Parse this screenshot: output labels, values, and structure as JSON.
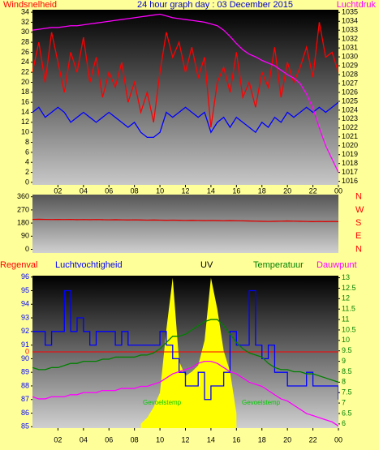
{
  "chart_data": [
    {
      "type": "line",
      "title": "24 hour graph day : 03 December 2015",
      "x": [
        0,
        0.5,
        1,
        1.5,
        2,
        2.5,
        3,
        3.5,
        4,
        4.5,
        5,
        5.5,
        6,
        6.5,
        7,
        7.5,
        8,
        8.5,
        9,
        9.5,
        10,
        10.5,
        11,
        11.5,
        12,
        12.5,
        13,
        13.5,
        14,
        14.5,
        15,
        15.5,
        16,
        16.5,
        17,
        17.5,
        18,
        18.5,
        19,
        19.5,
        20,
        20.5,
        21,
        21.5,
        22,
        22.5,
        23,
        23.5,
        24
      ],
      "xlim": [
        0,
        24
      ],
      "xticks": [
        {
          "value": 2,
          "label": "02"
        },
        {
          "value": 4,
          "label": "04"
        },
        {
          "value": 6,
          "label": "06"
        },
        {
          "value": 8,
          "label": "08"
        },
        10,
        12,
        14,
        16,
        18,
        20,
        22,
        {
          "value": 24,
          "label": "00"
        }
      ],
      "ylim": [
        -0.5,
        34.5
      ],
      "yticks": [
        0,
        2,
        4,
        6,
        8,
        10,
        12,
        14,
        16,
        18,
        20,
        22,
        24,
        26,
        28,
        30,
        32,
        34
      ],
      "y2lim": [
        1015.6,
        1035.3
      ],
      "y2ticks": [
        1016,
        1017,
        1018,
        1019,
        1020,
        1021,
        1022,
        1023,
        1024,
        1025,
        1026,
        1027,
        1028,
        1029,
        1030,
        1031,
        1032,
        1033,
        1034,
        1035
      ],
      "series": [
        {
          "name": "Windsnelheid",
          "color": "#ff0000",
          "values": [
            22,
            28,
            20,
            30,
            24,
            18,
            26,
            22,
            29,
            20,
            25,
            17,
            22,
            19,
            24,
            16,
            20,
            14,
            18,
            12,
            22,
            30,
            25,
            28,
            22,
            27,
            21,
            25,
            11,
            20,
            23,
            18,
            26,
            17,
            20,
            15,
            22,
            19,
            27,
            17,
            24,
            20,
            23,
            27,
            21,
            32,
            25,
            26,
            22
          ]
        },
        {
          "color": "#0000ff",
          "values": [
            14,
            15,
            13,
            14,
            15,
            14,
            12,
            13,
            14,
            13,
            12,
            13,
            14,
            13,
            12,
            11,
            12,
            10,
            9,
            9,
            10,
            14,
            13,
            14,
            15,
            14,
            13,
            14,
            10,
            12,
            13,
            11,
            13,
            12,
            11,
            10,
            12,
            11,
            13,
            12,
            14,
            13,
            14,
            15,
            14,
            15,
            14,
            15,
            16
          ]
        },
        {
          "name": "Luchtdruk",
          "color": "#ff00ff",
          "axis": "y2",
          "values": [
            1033.0,
            1033.1,
            1033.2,
            1033.3,
            1033.3,
            1033.4,
            1033.5,
            1033.5,
            1033.6,
            1033.7,
            1033.8,
            1033.9,
            1034.0,
            1034.1,
            1034.2,
            1034.3,
            1034.4,
            1034.5,
            1034.6,
            1034.7,
            1034.8,
            1034.6,
            1034.4,
            1034.3,
            1034.2,
            1034.1,
            1034.0,
            1033.9,
            1033.7,
            1033.5,
            1033.0,
            1032.3,
            1031.5,
            1030.8,
            1030.3,
            1030.0,
            1029.6,
            1029.3,
            1029.0,
            1028.5,
            1028.0,
            1027.6,
            1027.0,
            1025.8,
            1024.2,
            1022.0,
            1020.0,
            1018.5,
            1017.0
          ]
        }
      ]
    },
    {
      "type": "line",
      "x": [
        0,
        0.5,
        1,
        1.5,
        2,
        2.5,
        3,
        3.5,
        4,
        4.5,
        5,
        5.5,
        6,
        6.5,
        7,
        7.5,
        8,
        8.5,
        9,
        9.5,
        10,
        10.5,
        11,
        11.5,
        12,
        12.5,
        13,
        13.5,
        14,
        14.5,
        15,
        15.5,
        16,
        16.5,
        17,
        17.5,
        18,
        18.5,
        19,
        19.5,
        20,
        20.5,
        21,
        21.5,
        22,
        22.5,
        23,
        23.5,
        24
      ],
      "xlim": [
        0,
        24
      ],
      "ylim": [
        -25,
        375
      ],
      "yticks": [
        0,
        90,
        180,
        270,
        360
      ],
      "y2lim": [
        -25,
        375
      ],
      "y2ticks": [
        {
          "value": 360,
          "label": "N"
        },
        {
          "value": 270,
          "label": "W"
        },
        {
          "value": 180,
          "label": "S"
        },
        {
          "value": 90,
          "label": "E"
        },
        {
          "value": 0,
          "label": "N"
        }
      ],
      "series": [
        {
          "color": "#dd0000",
          "values": [
            205,
            206,
            205,
            204,
            205,
            204,
            205,
            203,
            204,
            203,
            204,
            203,
            202,
            203,
            202,
            201,
            202,
            201,
            200,
            201,
            200,
            199,
            200,
            199,
            198,
            199,
            198,
            197,
            198,
            197,
            196,
            197,
            196,
            195,
            194,
            193,
            192,
            191,
            192,
            193,
            194,
            193,
            192,
            191,
            190,
            191,
            190,
            191,
            190
          ]
        }
      ]
    },
    {
      "type": "line",
      "x": [
        0,
        0.5,
        1,
        1.5,
        2,
        2.5,
        3,
        3.5,
        4,
        4.5,
        5,
        5.5,
        6,
        6.5,
        7,
        7.5,
        8,
        8.5,
        9,
        9.5,
        10,
        10.5,
        11,
        11.5,
        12,
        12.5,
        13,
        13.5,
        14,
        14.5,
        15,
        15.5,
        16,
        16.5,
        17,
        17.5,
        18,
        18.5,
        19,
        19.5,
        20,
        20.5,
        21,
        21.5,
        22,
        22.5,
        23,
        23.5,
        24
      ],
      "xlim": [
        0,
        24
      ],
      "xticks": [
        {
          "value": 2,
          "label": "02"
        },
        {
          "value": 4,
          "label": "04"
        },
        {
          "value": 6,
          "label": "06"
        },
        {
          "value": 8,
          "label": "08"
        },
        10,
        12,
        14,
        16,
        18,
        20,
        22,
        {
          "value": 24,
          "label": "00"
        }
      ],
      "ylim": [
        84.9,
        96.1
      ],
      "yticks": [
        85,
        86,
        87,
        88,
        89,
        90,
        91,
        92,
        93,
        94,
        95,
        96
      ],
      "y2lim": [
        5.8,
        13.1
      ],
      "y2ticks": [
        6,
        6.5,
        7,
        7.5,
        8,
        8.5,
        9,
        9.5,
        10,
        10.5,
        11,
        11.5,
        12,
        12.5,
        13
      ],
      "rain_ylim": [
        -1,
        1
      ],
      "rain_yticks": [
        0
      ],
      "annotations": [
        "Gevoelstemp",
        "Gevoelstemp"
      ],
      "series": [
        {
          "name": "UV",
          "color": "#ffff00",
          "axis": "y2",
          "fill": true,
          "values": [
            null,
            null,
            null,
            null,
            null,
            null,
            null,
            null,
            null,
            null,
            null,
            null,
            null,
            null,
            null,
            null,
            null,
            6.0,
            6.3,
            6.8,
            7.5,
            10.5,
            13.0,
            9.0,
            8.3,
            8.5,
            8.8,
            10.0,
            13.0,
            11.5,
            9.5,
            8.5,
            6.5,
            null,
            null,
            null,
            null,
            null,
            null,
            null,
            null,
            null,
            null,
            null,
            null,
            null,
            null,
            null,
            null
          ]
        },
        {
          "name": "Regenval",
          "color": "#ff0000",
          "axis": "rain",
          "values": [
            0,
            0,
            0,
            0,
            0,
            0,
            0,
            0,
            0,
            0,
            0,
            0,
            0,
            0,
            0,
            0,
            0,
            0,
            0,
            0,
            0,
            0,
            0,
            0,
            0,
            0,
            0,
            0,
            0,
            0,
            0,
            0,
            0,
            0,
            0,
            0,
            0,
            0,
            0,
            0,
            0,
            0,
            0,
            0,
            0,
            0,
            0,
            0,
            0
          ]
        },
        {
          "name": "Luchtvochtigheid",
          "color": "#0000ff",
          "step": true,
          "values": [
            92,
            92,
            91,
            92,
            92,
            95,
            92,
            93,
            92,
            91,
            92,
            92,
            92,
            91,
            92,
            91,
            91,
            91,
            91,
            91,
            92,
            91,
            90,
            89,
            88,
            88,
            89,
            87,
            88,
            88,
            89,
            92,
            91,
            91,
            95,
            91,
            90,
            91,
            89,
            89,
            88,
            88,
            88,
            89,
            88,
            88,
            88,
            88,
            87
          ]
        },
        {
          "name": "Temperatuur",
          "color": "#008000",
          "axis": "y2",
          "values": [
            8.7,
            8.6,
            8.6,
            8.7,
            8.7,
            8.8,
            8.9,
            8.9,
            9.0,
            9.0,
            9.0,
            9.1,
            9.1,
            9.2,
            9.2,
            9.2,
            9.2,
            9.3,
            9.3,
            9.4,
            9.6,
            9.9,
            10.2,
            10.2,
            10.3,
            10.5,
            10.7,
            10.9,
            11.0,
            11.0,
            10.7,
            10.3,
            9.9,
            9.6,
            9.4,
            9.3,
            9.2,
            8.9,
            8.7,
            8.6,
            8.6,
            8.5,
            8.5,
            8.4,
            8.4,
            8.3,
            8.2,
            8.1,
            8.0
          ]
        },
        {
          "name": "Dauwpunt",
          "color": "#ff00ff",
          "axis": "y2",
          "values": [
            7.3,
            7.2,
            7.2,
            7.3,
            7.3,
            7.3,
            7.4,
            7.4,
            7.5,
            7.5,
            7.5,
            7.6,
            7.6,
            7.6,
            7.7,
            7.7,
            7.7,
            7.8,
            7.8,
            7.9,
            8.0,
            8.2,
            8.4,
            8.5,
            8.6,
            8.7,
            8.9,
            9.0,
            9.0,
            8.9,
            8.7,
            8.5,
            8.4,
            8.2,
            8.0,
            7.9,
            7.8,
            7.6,
            7.4,
            7.2,
            7.1,
            6.9,
            6.7,
            6.5,
            6.4,
            6.3,
            6.2,
            6.1,
            5.9
          ]
        }
      ]
    }
  ]
}
